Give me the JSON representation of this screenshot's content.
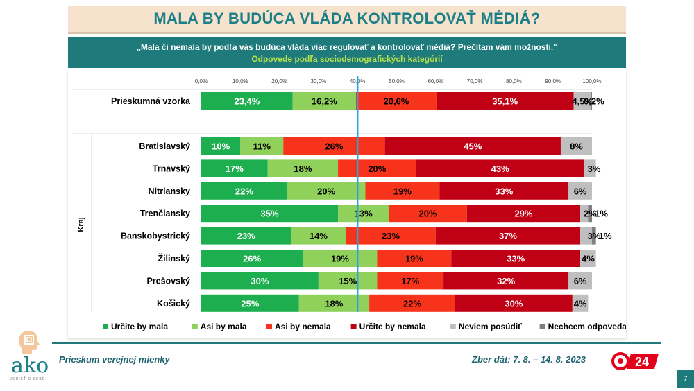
{
  "title": "MALA BY BUDÚCA VLÁDA KONTROLOVAŤ MÉDIÁ?",
  "question": "„Mala či nemala by podľa vás budúca vláda viac regulovať a kontrolovať médiá? Prečítam vám možnosti.“",
  "subtitle": "Odpovede podľa sociodemografických kategórií",
  "footer": {
    "left": "Prieskum verejnej mienky",
    "right": "Zber dát: 7. 8. – 14. 8. 2023",
    "page_number": "7",
    "logo_text": "ako",
    "logo_tagline": "VEDIEŤ O SEBE",
    "tv_logo_text": "24"
  },
  "colors": {
    "accent": "#1f7a7c",
    "reference_line": "#2ea3dc"
  },
  "chart_data": {
    "type": "bar",
    "orientation": "horizontal-stacked-100",
    "xlim": [
      0,
      100
    ],
    "x_ticks": [
      "0,0%",
      "10,0%",
      "20,0%",
      "30,0%",
      "40,0%",
      "50,0%",
      "60,0%",
      "70,0%",
      "80,0%",
      "90,0%",
      "100,0%"
    ],
    "reference_line_x": 40,
    "group_label": "Kraj",
    "legend_position": "bottom",
    "series": [
      {
        "name": "Určite by mala",
        "color": "#1daf4f"
      },
      {
        "name": "Asi by mala",
        "color": "#8fd15a"
      },
      {
        "name": "Asi by nemala",
        "color": "#f7331c"
      },
      {
        "name": "Určite by nemala",
        "color": "#c00014"
      },
      {
        "name": "Neviem posúdiť",
        "color": "#bfbfbf"
      },
      {
        "name": "Nechcem odpovedať",
        "color": "#7f7f7f"
      }
    ],
    "rows": [
      {
        "category": "Prieskumná vzorka",
        "values": [
          23.4,
          16.2,
          20.6,
          35.1,
          4.5,
          0.2
        ],
        "labels": [
          "23,4%",
          "16,2%",
          "20,6%",
          "35,1%",
          "4,5%",
          "0,2%"
        ]
      },
      {
        "category": "Bratislavský",
        "values": [
          10,
          11,
          26,
          45,
          8,
          0
        ],
        "labels": [
          "10%",
          "11%",
          "26%",
          "45%",
          "8%",
          ""
        ]
      },
      {
        "category": "Trnavský",
        "values": [
          17,
          18,
          20,
          43,
          3,
          0
        ],
        "labels": [
          "17%",
          "18%",
          "20%",
          "43%",
          "3%",
          ""
        ]
      },
      {
        "category": "Nitriansky",
        "values": [
          22,
          20,
          19,
          33,
          6,
          0
        ],
        "labels": [
          "22%",
          "20%",
          "19%",
          "33%",
          "6%",
          ""
        ]
      },
      {
        "category": "Trenčiansky",
        "values": [
          35,
          13,
          20,
          29,
          2,
          1
        ],
        "labels": [
          "35%",
          "13%",
          "20%",
          "29%",
          "2%",
          "1%"
        ]
      },
      {
        "category": "Banskobystrický",
        "values": [
          23,
          14,
          23,
          37,
          3,
          1
        ],
        "labels": [
          "23%",
          "14%",
          "23%",
          "37%",
          "3%",
          "1%"
        ]
      },
      {
        "category": "Žilinský",
        "values": [
          26,
          19,
          19,
          33,
          4,
          0
        ],
        "labels": [
          "26%",
          "19%",
          "19%",
          "33%",
          "4%",
          ""
        ]
      },
      {
        "category": "Prešovský",
        "values": [
          30,
          15,
          17,
          32,
          6,
          0
        ],
        "labels": [
          "30%",
          "15%",
          "17%",
          "32%",
          "6%",
          ""
        ]
      },
      {
        "category": "Košický",
        "values": [
          25,
          18,
          22,
          30,
          4,
          0
        ],
        "labels": [
          "25%",
          "18%",
          "22%",
          "30%",
          "4%",
          ""
        ]
      }
    ]
  }
}
